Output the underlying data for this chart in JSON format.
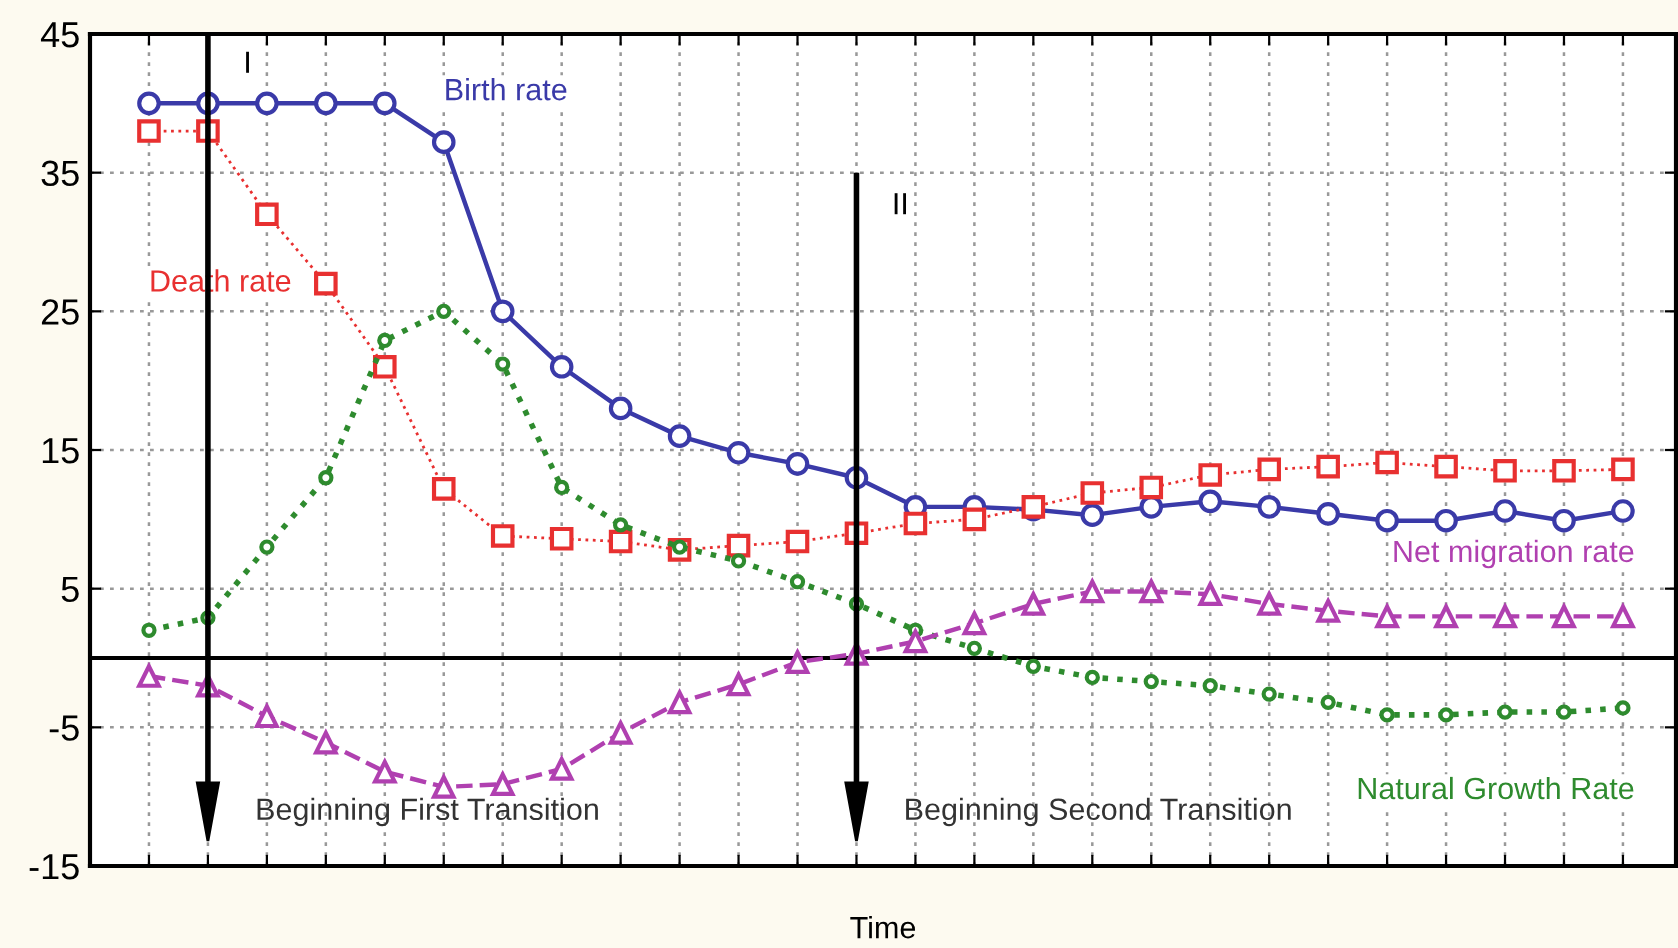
{
  "chart_data": {
    "type": "line",
    "xlabel": "Time",
    "categories": [
      null,
      null,
      null,
      null,
      null,
      null,
      null,
      null,
      null,
      null,
      null,
      null,
      null,
      null,
      null,
      null,
      null,
      null,
      null,
      null,
      null,
      null,
      null,
      null,
      null,
      null
    ],
    "series": [
      {
        "name": "Birth rate",
        "color": "#3a3aa8",
        "marker": "circle",
        "line_style": "solid",
        "values": [
          40,
          40,
          40,
          40,
          40,
          37.2,
          25,
          21,
          18,
          16,
          14.8,
          14,
          13,
          10.9,
          10.9,
          10.7,
          10.3,
          10.9,
          11.3,
          10.9,
          10.4,
          9.9,
          9.9,
          10.6,
          9.9,
          10.6
        ]
      },
      {
        "name": "Death rate",
        "color": "#e83030",
        "marker": "square",
        "line_style": "dotted",
        "values": [
          38,
          38,
          32,
          27,
          21,
          12.2,
          8.8,
          8.6,
          8.4,
          7.8,
          8.1,
          8.4,
          9,
          9.7,
          10,
          10.9,
          11.9,
          12.3,
          13.2,
          13.6,
          13.8,
          14.1,
          13.8,
          13.5,
          13.5,
          13.6
        ]
      },
      {
        "name": "Natural Growth Rate",
        "color": "#2e8b2e",
        "marker": "circle",
        "line_style": "dotted",
        "values": [
          2,
          2.9,
          8,
          13,
          22.9,
          25,
          21.2,
          12.3,
          9.6,
          8,
          7,
          5.5,
          3.9,
          2,
          0.7,
          -0.6,
          -1.4,
          -1.7,
          -2,
          -2.6,
          -3.2,
          -4.1,
          -4.1,
          -3.9,
          -3.9,
          -3.6
        ]
      },
      {
        "name": "Net migration rate",
        "color": "#b040b0",
        "marker": "triangle",
        "line_style": "dashed",
        "values": [
          -1.3,
          -2,
          -4.2,
          -6.1,
          -8.2,
          -9.3,
          -9.1,
          -8,
          -5.4,
          -3.2,
          -1.9,
          -0.3,
          0.3,
          1.2,
          2.5,
          3.9,
          4.8,
          4.8,
          4.6,
          3.9,
          3.4,
          3,
          3,
          3,
          3,
          3
        ]
      }
    ],
    "ylim": [
      -15,
      45
    ],
    "yticks": [
      -15,
      -5,
      5,
      15,
      25,
      35,
      45
    ],
    "tick_labels": "y",
    "grid": true,
    "ref_lines": [
      {
        "axis": "y",
        "value": 0,
        "color": "#000000",
        "line_style": "solid"
      }
    ],
    "annotations": [
      "I",
      "II",
      "Beginning First Transition",
      "Beginning Second Transition"
    ]
  }
}
